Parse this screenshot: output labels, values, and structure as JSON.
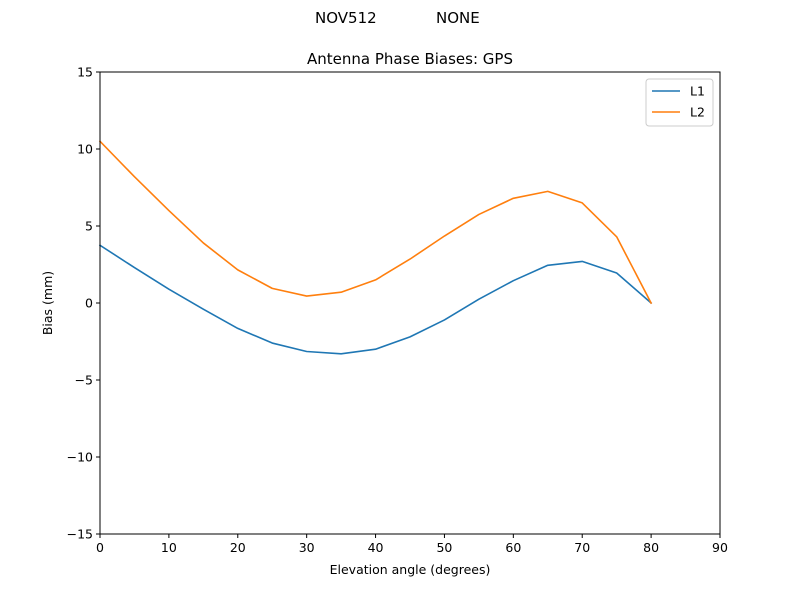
{
  "header": {
    "antenna": "NOV512",
    "radome": "NONE"
  },
  "chart_data": {
    "type": "line",
    "title": "Antenna Phase Biases: GPS",
    "xlabel": "Elevation angle (degrees)",
    "ylabel": "Bias (mm)",
    "xlim": [
      0,
      90
    ],
    "ylim": [
      -15,
      15
    ],
    "xticks": [
      0,
      10,
      20,
      30,
      40,
      50,
      60,
      70,
      80,
      90
    ],
    "yticks": [
      -15,
      -10,
      -5,
      0,
      5,
      10,
      15
    ],
    "xtick_labels": [
      "0",
      "10",
      "20",
      "30",
      "40",
      "50",
      "60",
      "70",
      "80",
      "90"
    ],
    "ytick_labels": [
      "−15",
      "−10",
      "−5",
      "0",
      "5",
      "10",
      "15"
    ],
    "grid": false,
    "legend": "top-right",
    "x": [
      0,
      5,
      10,
      15,
      20,
      25,
      30,
      35,
      40,
      45,
      50,
      55,
      60,
      65,
      70,
      75,
      80
    ],
    "series": [
      {
        "name": "L1",
        "color": "#1f77b4",
        "values": [
          3.75,
          2.3,
          0.9,
          -0.4,
          -1.65,
          -2.6,
          -3.15,
          -3.3,
          -3.0,
          -2.2,
          -1.1,
          0.25,
          1.45,
          2.45,
          2.7,
          1.95,
          0.0
        ]
      },
      {
        "name": "L2",
        "color": "#ff7f0e",
        "values": [
          10.5,
          8.2,
          6.0,
          3.9,
          2.15,
          0.95,
          0.45,
          0.7,
          1.5,
          2.85,
          4.35,
          5.75,
          6.8,
          7.25,
          6.5,
          4.3,
          0.0
        ]
      }
    ]
  }
}
